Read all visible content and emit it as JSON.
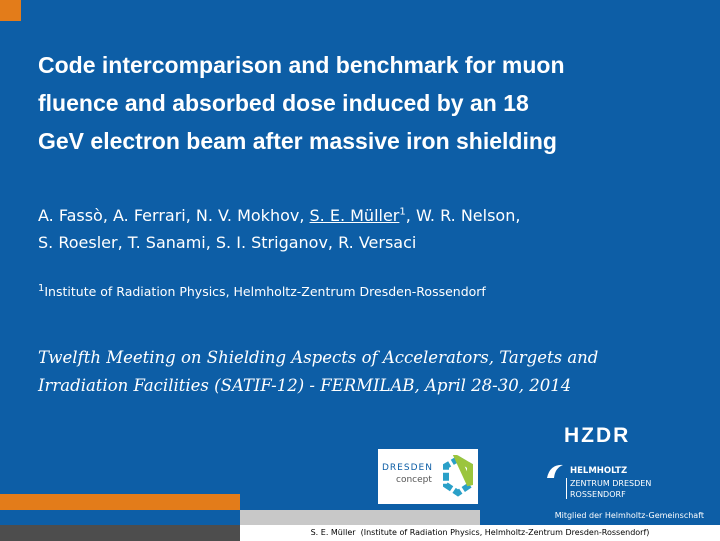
{
  "title": {
    "lines": [
      "Code intercomparison and benchmark for muon",
      "fluence and absorbed dose induced by an 18",
      "GeV electron beam after massive iron shielding"
    ]
  },
  "authors": {
    "line1_start": "A. Fassò, A. Ferrari, N. V. Mokhov, ",
    "presenter": "S. E. Müller",
    "presenter_mark": "1",
    "line1_end": ", W. R. Nelson,",
    "line2": "S. Roesler, T. Sanami, S. I. Striganov, R. Versaci"
  },
  "affiliation": {
    "mark": "1",
    "text": "Institute of Radiation Physics, Helmholtz-Zentrum Dresden-Rossendorf"
  },
  "meeting": {
    "lines": [
      "Twelfth Meeting on Shielding Aspects of Accelerators, Targets and",
      "Irradiation Facilities (SATIF-12) - FERMILAB, April 28-30, 2014"
    ]
  },
  "logos": {
    "hzdr": "HZDR",
    "dresden": "DRESDEN",
    "concept": "concept",
    "helmholtz": "HELMHOLTZ",
    "zentrum": "ZENTRUM DRESDEN",
    "rossendorf": "ROSSENDORF"
  },
  "member": "Mitglied der Helmholtz-Gemeinschaft",
  "footer": "S. E. Müller  (Institute of Radiation Physics, Helmholtz-Zentrum Dresden-Rossendorf)"
}
